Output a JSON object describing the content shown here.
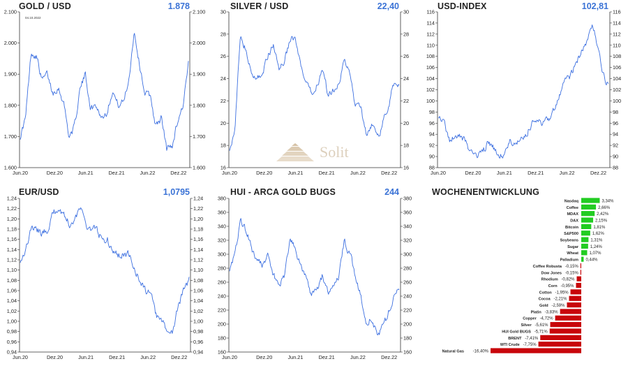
{
  "colors": {
    "line": "#3c6fe0",
    "value": "#3b73d6",
    "positive": "#22cc22",
    "negative": "#c8050a",
    "axis": "#333333"
  },
  "x_labels": [
    "Jun.20",
    "Dez.20",
    "Jun.21",
    "Dez.21",
    "Jun.22",
    "Dez.22"
  ],
  "watermark": {
    "text": "Solit"
  },
  "charts": [
    {
      "id": "gold",
      "title": "GOLD / USD",
      "value": "1.878",
      "annotation": "04.10.2022",
      "yticks": [
        "2.100",
        "2.000",
        "1.900",
        "1.800",
        "1.700",
        "1.600"
      ]
    },
    {
      "id": "silver",
      "title": "SILVER / USD",
      "value": "22,40",
      "yticks": [
        "30",
        "28",
        "26",
        "24",
        "22",
        "20",
        "18",
        "16"
      ]
    },
    {
      "id": "usd",
      "title": "USD-INDEX",
      "value": "102,81",
      "yticks": [
        "116",
        "114",
        "112",
        "110",
        "108",
        "106",
        "104",
        "102",
        "100",
        "98",
        "96",
        "94",
        "92",
        "90",
        "88"
      ]
    },
    {
      "id": "eurusd",
      "title": "EUR/USD",
      "value": "1,0795",
      "yticks": [
        "1,24",
        "1,22",
        "1,20",
        "1,18",
        "1,16",
        "1,14",
        "1,12",
        "1,10",
        "1,08",
        "1,06",
        "1,04",
        "1,02",
        "1,00",
        "0,98",
        "0,96",
        "0,94"
      ]
    },
    {
      "id": "hui",
      "title": "HUI - ARCA GOLD BUGS",
      "value": "244",
      "yticks": [
        "380",
        "360",
        "340",
        "320",
        "300",
        "280",
        "260",
        "240",
        "220",
        "200",
        "180",
        "160"
      ]
    }
  ],
  "chart_data": [
    {
      "type": "line",
      "title": "GOLD / USD",
      "ylim": [
        1600,
        2100
      ],
      "x": [
        "Jun.20",
        "Jul.20",
        "Aug.20",
        "Sep.20",
        "Okt.20",
        "Nov.20",
        "Dez.20",
        "Jan.21",
        "Feb.21",
        "Mrz.21",
        "Apr.21",
        "Mai.21",
        "Jun.21",
        "Jul.21",
        "Aug.21",
        "Sep.21",
        "Okt.21",
        "Nov.21",
        "Dez.21",
        "Jan.22",
        "Feb.22",
        "Mrz.22",
        "Apr.22",
        "Mai.22",
        "Jun.22",
        "Jul.22",
        "Aug.22",
        "Sep.22",
        "Okt.22",
        "Nov.22",
        "Dez.22",
        "Jan.23"
      ],
      "series": [
        {
          "values": [
            1700,
            1760,
            1970,
            1960,
            1880,
            1900,
            1840,
            1860,
            1810,
            1700,
            1730,
            1850,
            1900,
            1790,
            1800,
            1760,
            1780,
            1850,
            1800,
            1810,
            1880,
            2040,
            1930,
            1840,
            1830,
            1730,
            1760,
            1660,
            1670,
            1750,
            1800,
            1930
          ]
        }
      ]
    },
    {
      "type": "line",
      "title": "SILVER / USD",
      "ylim": [
        16,
        30
      ],
      "x": [
        "Jun.20",
        "Jul.20",
        "Aug.20",
        "Sep.20",
        "Okt.20",
        "Nov.20",
        "Dez.20",
        "Jan.21",
        "Feb.21",
        "Mrz.21",
        "Apr.21",
        "Mai.21",
        "Jun.21",
        "Jul.21",
        "Aug.21",
        "Sep.21",
        "Okt.21",
        "Nov.21",
        "Dez.21",
        "Jan.22",
        "Feb.22",
        "Mrz.22",
        "Apr.22",
        "Mai.22",
        "Jun.22",
        "Jul.22",
        "Aug.22",
        "Sep.22",
        "Okt.22",
        "Nov.22",
        "Dez.22",
        "Jan.23"
      ],
      "series": [
        {
          "values": [
            17.8,
            19.5,
            28.0,
            26.5,
            24.3,
            24.0,
            24.5,
            26.0,
            27.0,
            25.0,
            25.5,
            27.5,
            27.5,
            25.0,
            23.5,
            22.5,
            23.5,
            25.0,
            22.5,
            23.0,
            23.8,
            25.5,
            24.5,
            21.5,
            21.5,
            19.0,
            20.0,
            18.5,
            20.0,
            21.5,
            23.5,
            23.5
          ]
        }
      ]
    },
    {
      "type": "line",
      "title": "USD-INDEX",
      "ylim": [
        88,
        116
      ],
      "x": [
        "Jun.20",
        "Jul.20",
        "Aug.20",
        "Sep.20",
        "Okt.20",
        "Nov.20",
        "Dez.20",
        "Jan.21",
        "Feb.21",
        "Mrz.21",
        "Apr.21",
        "Mai.21",
        "Jun.21",
        "Jul.21",
        "Aug.21",
        "Sep.21",
        "Okt.21",
        "Nov.21",
        "Dez.21",
        "Jan.22",
        "Feb.22",
        "Mrz.22",
        "Apr.22",
        "Mai.22",
        "Jun.22",
        "Jul.22",
        "Aug.22",
        "Sep.22",
        "Okt.22",
        "Nov.22",
        "Dez.22",
        "Jan.23"
      ],
      "series": [
        {
          "values": [
            97.5,
            96.5,
            93.0,
            93.3,
            93.5,
            92.5,
            90.5,
            90.0,
            90.6,
            92.5,
            91.5,
            90.0,
            90.2,
            92.5,
            92.6,
            93.0,
            94.0,
            96.0,
            96.2,
            95.8,
            96.5,
            98.5,
            100.5,
            103.0,
            104.5,
            106.5,
            108.5,
            110.5,
            113.5,
            110.0,
            104.5,
            102.8
          ]
        }
      ]
    },
    {
      "type": "line",
      "title": "EUR/USD",
      "ylim": [
        0.94,
        1.24
      ],
      "x": [
        "Jun.20",
        "Jul.20",
        "Aug.20",
        "Sep.20",
        "Okt.20",
        "Nov.20",
        "Dez.20",
        "Jan.21",
        "Feb.21",
        "Mrz.21",
        "Apr.21",
        "Mai.21",
        "Jun.21",
        "Jul.21",
        "Aug.21",
        "Sep.21",
        "Okt.21",
        "Nov.21",
        "Dez.21",
        "Jan.22",
        "Feb.22",
        "Mrz.22",
        "Apr.22",
        "Mai.22",
        "Jun.22",
        "Jul.22",
        "Aug.22",
        "Sep.22",
        "Okt.22",
        "Nov.22",
        "Dez.22",
        "Jan.23"
      ],
      "series": [
        {
          "values": [
            1.12,
            1.14,
            1.18,
            1.18,
            1.17,
            1.18,
            1.21,
            1.22,
            1.21,
            1.19,
            1.2,
            1.22,
            1.19,
            1.18,
            1.18,
            1.16,
            1.16,
            1.13,
            1.13,
            1.13,
            1.13,
            1.1,
            1.08,
            1.06,
            1.05,
            1.01,
            1.0,
            0.98,
            0.98,
            1.03,
            1.06,
            1.08
          ]
        }
      ]
    },
    {
      "type": "line",
      "title": "HUI - ARCA GOLD BUGS",
      "ylim": [
        160,
        380
      ],
      "x": [
        "Jun.20",
        "Jul.20",
        "Aug.20",
        "Sep.20",
        "Okt.20",
        "Nov.20",
        "Dez.20",
        "Jan.21",
        "Feb.21",
        "Mrz.21",
        "Apr.21",
        "Mai.21",
        "Jun.21",
        "Jul.21",
        "Aug.21",
        "Sep.21",
        "Okt.21",
        "Nov.21",
        "Dez.21",
        "Jan.22",
        "Feb.22",
        "Mrz.22",
        "Apr.22",
        "Mai.22",
        "Jun.22",
        "Jul.22",
        "Aug.22",
        "Sep.22",
        "Okt.22",
        "Nov.22",
        "Dez.22",
        "Jan.23"
      ],
      "series": [
        {
          "values": [
            280,
            300,
            350,
            335,
            310,
            290,
            285,
            300,
            270,
            255,
            270,
            320,
            310,
            280,
            270,
            240,
            250,
            270,
            245,
            250,
            270,
            320,
            300,
            270,
            240,
            200,
            210,
            185,
            195,
            215,
            240,
            250
          ]
        }
      ]
    },
    {
      "type": "bar",
      "title": "WOCHENENTWICKLUNG",
      "orientation": "horizontal",
      "categories": [
        "Nasdaq",
        "Coffee",
        "MDAX",
        "DAX",
        "Bitcoin",
        "S&P500",
        "Soybeans",
        "Sugar",
        "Wheat",
        "Palladium",
        "Coffee Robusta",
        "Dow Jones",
        "Rhodium",
        "Corn",
        "Cotton",
        "Cocoa",
        "Gold",
        "Platin",
        "Copper",
        "Silver",
        "HUI Gold BUGS",
        "BRENT",
        "WTI Crude",
        "Natural Gas"
      ],
      "values": [
        3.34,
        2.66,
        2.42,
        2.15,
        1.81,
        1.62,
        1.31,
        1.24,
        1.07,
        0.44,
        -0.15,
        -0.15,
        -0.82,
        -0.95,
        -1.95,
        -2.21,
        -2.59,
        -3.83,
        -4.72,
        -5.61,
        -5.71,
        -7.41,
        -7.75,
        -16.4
      ],
      "labels": [
        "3,34%",
        "2,66%",
        "2,42%",
        "2,15%",
        "1,81%",
        "1,62%",
        "1,31%",
        "1,24%",
        "1,07%",
        "0,44%",
        "-0,15%",
        "-0,15%",
        "-0,82%",
        "-0,95%",
        "-1,95%",
        "-2,21%",
        "-2,59%",
        "-3,83%",
        "-4,72%",
        "-5,61%",
        "-5,71%",
        "-7,41%",
        "-7,75%",
        "-16,40%"
      ]
    }
  ]
}
